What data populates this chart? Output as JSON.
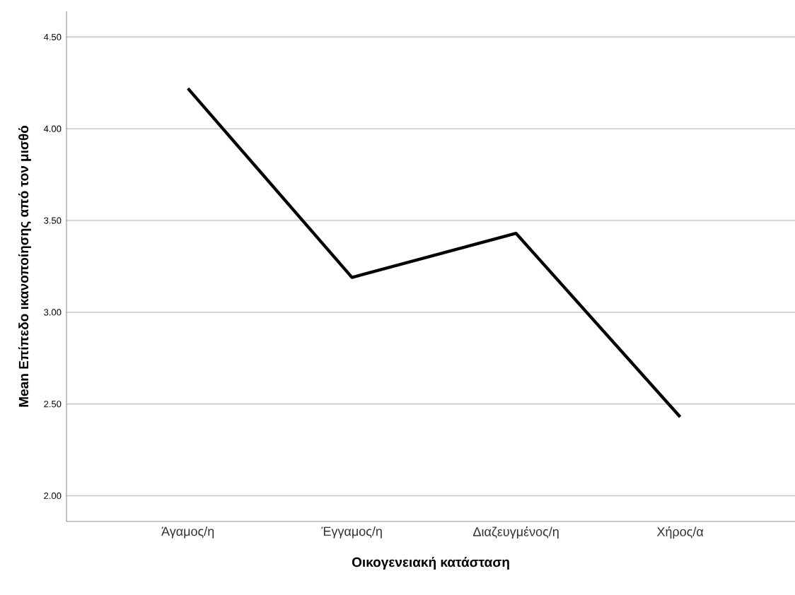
{
  "chart_data": {
    "type": "line",
    "xlabel": "Οικογενειακή κατάσταση",
    "ylabel": "Mean Επίπεδο ικανοποίησης από τον μισθό",
    "categories": [
      "Άγαμος/η",
      "Έγγαμος/η",
      "Διαζευγμένος/η",
      "Χήρος/α"
    ],
    "series": [
      {
        "color": "#000000",
        "values": [
          4.22,
          3.19,
          3.43,
          2.43
        ]
      }
    ],
    "ylim": [
      1.86,
      4.64
    ],
    "yticks": [
      {
        "value": 2.0,
        "label": "2.00"
      },
      {
        "value": 2.5,
        "label": "2.50"
      },
      {
        "value": 3.0,
        "label": "3.00"
      },
      {
        "value": 3.5,
        "label": "3.50"
      },
      {
        "value": 4.0,
        "label": "4.00"
      },
      {
        "value": 4.5,
        "label": "4.50"
      }
    ],
    "grid": "y",
    "legend": false,
    "marker": "none",
    "line_style": "solid"
  }
}
